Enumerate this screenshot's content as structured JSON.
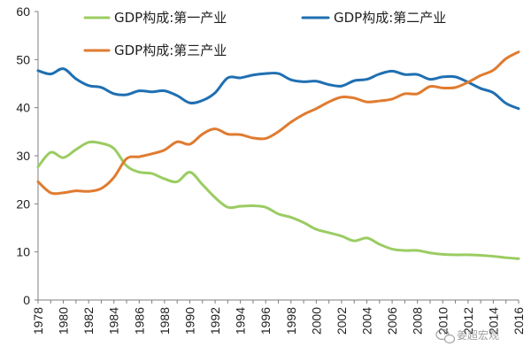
{
  "chart_data": {
    "type": "line",
    "title": "",
    "xlabel": "",
    "ylabel": "",
    "x": [
      1978,
      1979,
      1980,
      1981,
      1982,
      1983,
      1984,
      1985,
      1986,
      1987,
      1988,
      1989,
      1990,
      1991,
      1992,
      1993,
      1994,
      1995,
      1996,
      1997,
      1998,
      1999,
      2000,
      2001,
      2002,
      2003,
      2004,
      2005,
      2006,
      2007,
      2008,
      2009,
      2010,
      2011,
      2012,
      2013,
      2014,
      2015,
      2016
    ],
    "x_tick_labels": [
      "1978",
      "1980",
      "1982",
      "1984",
      "1986",
      "1988",
      "1990",
      "1992",
      "1994",
      "1996",
      "1998",
      "2000",
      "2002",
      "2004",
      "2006",
      "2008",
      "2010",
      "2012",
      "2014",
      "2016"
    ],
    "ylim": [
      0,
      60
    ],
    "y_ticks": [
      0,
      10,
      20,
      30,
      40,
      50,
      60
    ],
    "grid": false,
    "legend_position": "top",
    "series": [
      {
        "name": "GDP构成:第一产业",
        "color": "#9bcc62",
        "values": [
          27.7,
          30.7,
          29.6,
          31.3,
          32.8,
          32.6,
          31.5,
          27.9,
          26.6,
          26.3,
          25.2,
          24.6,
          26.6,
          24.0,
          21.3,
          19.3,
          19.5,
          19.6,
          19.3,
          17.9,
          17.2,
          16.1,
          14.7,
          14.0,
          13.3,
          12.3,
          12.9,
          11.6,
          10.6,
          10.3,
          10.3,
          9.8,
          9.5,
          9.4,
          9.4,
          9.3,
          9.1,
          8.8,
          8.6
        ]
      },
      {
        "name": "GDP构成:第二产业",
        "color": "#1f6fb2",
        "values": [
          47.7,
          47.0,
          48.1,
          46.0,
          44.6,
          44.2,
          42.9,
          42.7,
          43.5,
          43.3,
          43.5,
          42.5,
          41.0,
          41.5,
          43.1,
          46.2,
          46.2,
          46.8,
          47.1,
          47.1,
          45.8,
          45.4,
          45.5,
          44.8,
          44.5,
          45.6,
          45.9,
          47.0,
          47.6,
          46.9,
          46.9,
          45.9,
          46.4,
          46.4,
          45.3,
          44.0,
          43.1,
          40.9,
          39.8
        ]
      },
      {
        "name": "GDP构成:第三产业",
        "color": "#e07b30",
        "values": [
          24.6,
          22.3,
          22.3,
          22.7,
          22.6,
          23.2,
          25.5,
          29.4,
          29.8,
          30.4,
          31.2,
          32.9,
          32.4,
          34.5,
          35.6,
          34.5,
          34.4,
          33.7,
          33.6,
          35.0,
          37.0,
          38.6,
          39.8,
          41.2,
          42.2,
          42.0,
          41.2,
          41.4,
          41.8,
          42.9,
          42.9,
          44.4,
          44.1,
          44.2,
          45.3,
          46.7,
          47.8,
          50.2,
          51.6
        ]
      }
    ]
  },
  "watermark": {
    "text": "姜超宏观",
    "icon": "wechat-icon"
  }
}
